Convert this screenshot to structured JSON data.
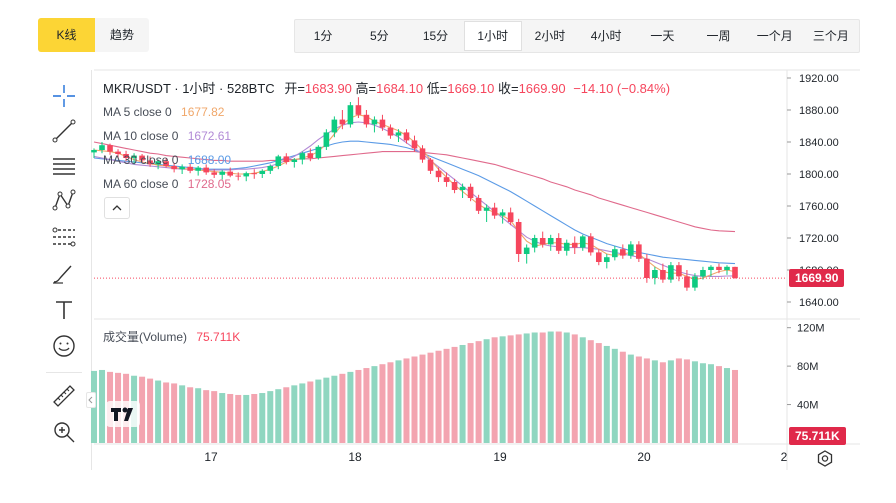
{
  "tabs": {
    "kline": "K线",
    "trend": "趋势"
  },
  "intervals": [
    {
      "label": "1分",
      "active": false
    },
    {
      "label": "5分",
      "active": false
    },
    {
      "label": "15分",
      "active": false
    },
    {
      "label": "1小时",
      "active": true
    },
    {
      "label": "2小时",
      "active": false
    },
    {
      "label": "4小时",
      "active": false
    },
    {
      "label": "一天",
      "active": false
    },
    {
      "label": "一周",
      "active": false
    },
    {
      "label": "一个月",
      "active": false
    },
    {
      "label": "三个月",
      "active": false
    }
  ],
  "header": {
    "symbol": "MKR/USDT · 1小时 · 528BTC",
    "open_label": "开=",
    "open": "1683.90",
    "high_label": "高=",
    "high": "1684.10",
    "low_label": "低=",
    "low": "1669.10",
    "close_label": "收=",
    "close": "1669.90",
    "change": "−14.10 (−0.84%)"
  },
  "ma": [
    {
      "label": "MA 5 close 0",
      "value": "1677.82",
      "color": "#f0a76a"
    },
    {
      "label": "MA 10 close 0",
      "value": "1672.61",
      "color": "#b28ad6"
    },
    {
      "label": "MA 30 close 0",
      "value": "1688.00",
      "color": "#5b9be6"
    },
    {
      "label": "MA 60 close 0",
      "value": "1728.05",
      "color": "#e06a8c"
    }
  ],
  "volume_legend": {
    "label": "成交量(Volume)",
    "value": "75.711K"
  },
  "price_axis": [
    "1920.00",
    "1880.00",
    "1840.00",
    "1800.00",
    "1760.00",
    "1720.00",
    "1680.00",
    "1640.00"
  ],
  "current_price": "1669.90",
  "volume_axis": [
    "120M",
    "80M",
    "40M"
  ],
  "volume_current": "75.711K",
  "time_axis": [
    "17",
    "18",
    "19",
    "20",
    "2"
  ],
  "colors": {
    "up": "#0ecb81",
    "down": "#f6465d",
    "up_vol": "#8fd6c0",
    "down_vol": "#f3a4b0"
  },
  "chart_data": {
    "type": "candlestick",
    "candles": [
      [
        1827,
        1832,
        1820,
        1830
      ],
      [
        1830,
        1840,
        1826,
        1836
      ],
      [
        1836,
        1838,
        1824,
        1828
      ],
      [
        1828,
        1831,
        1820,
        1825
      ],
      [
        1825,
        1829,
        1816,
        1820
      ],
      [
        1820,
        1826,
        1812,
        1823
      ],
      [
        1823,
        1825,
        1814,
        1817
      ],
      [
        1817,
        1822,
        1809,
        1812
      ],
      [
        1812,
        1818,
        1806,
        1816
      ],
      [
        1816,
        1820,
        1808,
        1810
      ],
      [
        1810,
        1814,
        1802,
        1806
      ],
      [
        1806,
        1812,
        1800,
        1809
      ],
      [
        1809,
        1813,
        1801,
        1804
      ],
      [
        1804,
        1810,
        1798,
        1808
      ],
      [
        1808,
        1812,
        1799,
        1802
      ],
      [
        1802,
        1806,
        1795,
        1799
      ],
      [
        1799,
        1805,
        1793,
        1803
      ],
      [
        1803,
        1808,
        1796,
        1798
      ],
      [
        1798,
        1802,
        1792,
        1797
      ],
      [
        1797,
        1803,
        1791,
        1801
      ],
      [
        1801,
        1806,
        1794,
        1800
      ],
      [
        1800,
        1806,
        1795,
        1804
      ],
      [
        1804,
        1812,
        1800,
        1810
      ],
      [
        1810,
        1824,
        1806,
        1822
      ],
      [
        1822,
        1826,
        1812,
        1815
      ],
      [
        1815,
        1820,
        1808,
        1818
      ],
      [
        1818,
        1828,
        1812,
        1826
      ],
      [
        1826,
        1832,
        1816,
        1820
      ],
      [
        1820,
        1836,
        1818,
        1834
      ],
      [
        1834,
        1856,
        1830,
        1852
      ],
      [
        1852,
        1872,
        1846,
        1868
      ],
      [
        1868,
        1880,
        1856,
        1862
      ],
      [
        1862,
        1890,
        1858,
        1886
      ],
      [
        1886,
        1896,
        1870,
        1874
      ],
      [
        1874,
        1880,
        1858,
        1862
      ],
      [
        1862,
        1872,
        1852,
        1868
      ],
      [
        1868,
        1874,
        1854,
        1858
      ],
      [
        1858,
        1862,
        1844,
        1848
      ],
      [
        1848,
        1856,
        1840,
        1852
      ],
      [
        1852,
        1856,
        1838,
        1842
      ],
      [
        1842,
        1848,
        1828,
        1832
      ],
      [
        1832,
        1836,
        1814,
        1818
      ],
      [
        1818,
        1820,
        1800,
        1804
      ],
      [
        1804,
        1808,
        1790,
        1796
      ],
      [
        1796,
        1802,
        1784,
        1790
      ],
      [
        1790,
        1794,
        1776,
        1780
      ],
      [
        1780,
        1788,
        1770,
        1784
      ],
      [
        1784,
        1788,
        1766,
        1770
      ],
      [
        1770,
        1774,
        1750,
        1754
      ],
      [
        1754,
        1762,
        1740,
        1758
      ],
      [
        1758,
        1764,
        1744,
        1748
      ],
      [
        1748,
        1756,
        1738,
        1752
      ],
      [
        1752,
        1758,
        1736,
        1740
      ],
      [
        1740,
        1744,
        1690,
        1700
      ],
      [
        1700,
        1712,
        1688,
        1708
      ],
      [
        1708,
        1724,
        1702,
        1720
      ],
      [
        1720,
        1728,
        1708,
        1712
      ],
      [
        1712,
        1724,
        1704,
        1720
      ],
      [
        1720,
        1726,
        1700,
        1704
      ],
      [
        1704,
        1718,
        1698,
        1714
      ],
      [
        1714,
        1722,
        1700,
        1708
      ],
      [
        1708,
        1724,
        1704,
        1722
      ],
      [
        1722,
        1726,
        1698,
        1702
      ],
      [
        1702,
        1706,
        1686,
        1690
      ],
      [
        1690,
        1700,
        1682,
        1696
      ],
      [
        1696,
        1710,
        1692,
        1706
      ],
      [
        1706,
        1712,
        1694,
        1698
      ],
      [
        1698,
        1716,
        1694,
        1712
      ],
      [
        1712,
        1716,
        1690,
        1694
      ],
      [
        1694,
        1700,
        1664,
        1670
      ],
      [
        1670,
        1684,
        1662,
        1680
      ],
      [
        1680,
        1688,
        1664,
        1668
      ],
      [
        1668,
        1690,
        1664,
        1686
      ],
      [
        1686,
        1690,
        1666,
        1672
      ],
      [
        1672,
        1680,
        1654,
        1658
      ],
      [
        1658,
        1676,
        1654,
        1672
      ],
      [
        1672,
        1684,
        1668,
        1680
      ],
      [
        1680,
        1686,
        1672,
        1684
      ],
      [
        1684,
        1688,
        1676,
        1680
      ],
      [
        1680,
        1686,
        1674,
        1684
      ],
      [
        1683.9,
        1684.1,
        1669.1,
        1669.9
      ]
    ],
    "ma60": [
      1840,
      1838,
      1836,
      1834,
      1832,
      1830,
      1828,
      1826,
      1825,
      1823,
      1822,
      1821,
      1820,
      1819,
      1818,
      1817,
      1817,
      1816,
      1816,
      1816,
      1816,
      1816,
      1817,
      1817,
      1818,
      1818,
      1819,
      1819,
      1820,
      1821,
      1822,
      1823,
      1824,
      1825,
      1826,
      1827,
      1828,
      1828,
      1828,
      1828,
      1828,
      1827,
      1826,
      1825,
      1824,
      1822,
      1820,
      1818,
      1816,
      1814,
      1812,
      1809,
      1806,
      1803,
      1800,
      1797,
      1794,
      1790,
      1787,
      1784,
      1780,
      1777,
      1774,
      1770,
      1767,
      1764,
      1761,
      1758,
      1755,
      1752,
      1749,
      1746,
      1743,
      1740,
      1737,
      1734,
      1732,
      1730,
      1729,
      1728.5,
      1728.05
    ],
    "ma30": [
      1820,
      1819,
      1818,
      1817,
      1816,
      1815,
      1814,
      1813,
      1812,
      1811,
      1810,
      1809,
      1808,
      1807,
      1806,
      1806,
      1806,
      1806,
      1807,
      1808,
      1810,
      1812,
      1814,
      1817,
      1820,
      1823,
      1826,
      1829,
      1832,
      1835,
      1838,
      1840,
      1841,
      1841,
      1840,
      1839,
      1838,
      1837,
      1835,
      1833,
      1830,
      1826,
      1822,
      1818,
      1814,
      1810,
      1806,
      1802,
      1798,
      1793,
      1788,
      1783,
      1778,
      1772,
      1766,
      1760,
      1754,
      1748,
      1742,
      1736,
      1730,
      1725,
      1721,
      1717,
      1713,
      1710,
      1707,
      1704,
      1702,
      1700,
      1698,
      1696,
      1695,
      1694,
      1693,
      1692,
      1691,
      1690,
      1689,
      1688.5,
      1688.0
    ],
    "ma10": [
      1822,
      1820,
      1818,
      1816,
      1814,
      1812,
      1811,
      1810,
      1809,
      1808,
      1807,
      1806,
      1806,
      1805,
      1805,
      1805,
      1805,
      1805,
      1806,
      1806,
      1807,
      1808,
      1810,
      1813,
      1817,
      1822,
      1828,
      1835,
      1843,
      1850,
      1856,
      1861,
      1864,
      1865,
      1864,
      1861,
      1857,
      1852,
      1846,
      1839,
      1832,
      1825,
      1817,
      1809,
      1801,
      1793,
      1785,
      1777,
      1769,
      1761,
      1753,
      1745,
      1737,
      1729,
      1721,
      1716,
      1712,
      1710,
      1709,
      1708,
      1708,
      1708,
      1707,
      1706,
      1704,
      1702,
      1700,
      1698,
      1696,
      1694,
      1690,
      1686,
      1682,
      1678,
      1675,
      1673,
      1672,
      1672,
      1672,
      1672.5,
      1672.61
    ],
    "ma5": [
      1830,
      1829,
      1828,
      1826,
      1822,
      1818,
      1815,
      1813,
      1811,
      1810,
      1808,
      1807,
      1806,
      1805,
      1804,
      1803,
      1802,
      1801,
      1800,
      1800,
      1801,
      1803,
      1806,
      1810,
      1815,
      1818,
      1820,
      1823,
      1828,
      1838,
      1850,
      1862,
      1870,
      1874,
      1872,
      1866,
      1862,
      1858,
      1854,
      1848,
      1840,
      1830,
      1818,
      1806,
      1796,
      1786,
      1778,
      1770,
      1762,
      1756,
      1752,
      1748,
      1742,
      1728,
      1716,
      1710,
      1712,
      1714,
      1714,
      1712,
      1712,
      1714,
      1712,
      1706,
      1700,
      1698,
      1700,
      1702,
      1700,
      1692,
      1684,
      1678,
      1676,
      1676,
      1672,
      1668,
      1670,
      1674,
      1678,
      1680,
      1677.82
    ],
    "volumes": [
      75,
      76,
      74,
      73,
      72,
      70,
      69,
      67,
      65,
      63,
      62,
      60,
      58,
      57,
      55,
      54,
      52,
      51,
      50,
      50,
      51,
      52,
      54,
      56,
      58,
      60,
      62,
      64,
      66,
      68,
      70,
      72,
      74,
      76,
      78,
      80,
      82,
      84,
      86,
      88,
      90,
      92,
      94,
      96,
      98,
      100,
      102,
      104,
      106,
      108,
      110,
      111,
      112,
      113,
      114,
      115,
      115,
      116,
      116,
      115,
      113,
      110,
      107,
      104,
      101,
      98,
      95,
      92,
      90,
      88,
      86,
      84,
      86,
      88,
      87,
      85,
      83,
      82,
      80,
      78,
      76
    ],
    "y_min": 1620,
    "y_max": 1930,
    "vol_max": 128
  }
}
